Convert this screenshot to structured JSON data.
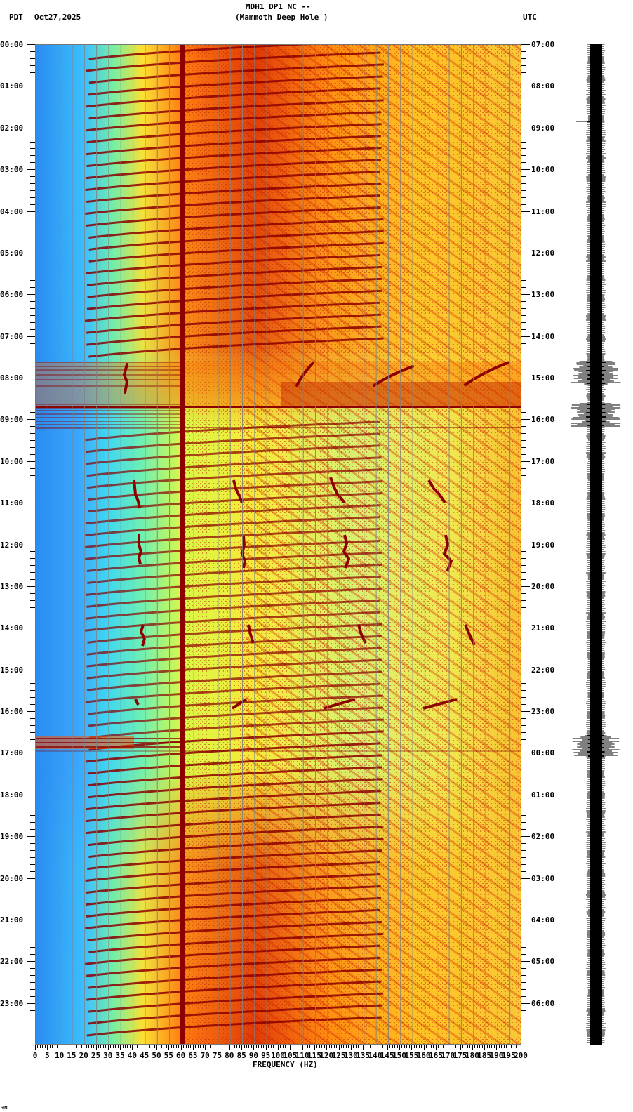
{
  "header": {
    "station": "MDH1 DP1 NC --",
    "location": "(Mammoth Deep Hole )",
    "left_timezone": "PDT",
    "date": "Oct27,2025",
    "right_timezone": "UTC"
  },
  "footer": {
    "corner_mark": "√M"
  },
  "chart_data": {
    "type": "heatmap",
    "title": "MDH1 DP1 NC -- (Mammoth Deep Hole )",
    "subtitle": "Oct27,2025",
    "xlabel": "FREQUENCY (HZ)",
    "ylabel_left": "PDT",
    "ylabel_right": "UTC",
    "xlim": [
      0,
      200
    ],
    "x_ticks": [
      "0",
      "5",
      "10",
      "15",
      "20",
      "25",
      "30",
      "35",
      "40",
      "45",
      "50",
      "55",
      "60",
      "65",
      "70",
      "75",
      "80",
      "85",
      "90",
      "95",
      "100",
      "105",
      "110",
      "115",
      "120",
      "125",
      "130",
      "135",
      "140",
      "145",
      "150",
      "155",
      "160",
      "165",
      "170",
      "175",
      "180",
      "185",
      "190",
      "195",
      "200"
    ],
    "y_ticks_left": [
      "00:00",
      "01:00",
      "02:00",
      "03:00",
      "04:00",
      "05:00",
      "06:00",
      "07:00",
      "08:00",
      "09:00",
      "10:00",
      "11:00",
      "12:00",
      "13:00",
      "14:00",
      "15:00",
      "16:00",
      "17:00",
      "18:00",
      "19:00",
      "20:00",
      "21:00",
      "22:00",
      "23:00"
    ],
    "y_ticks_right": [
      "07:00",
      "08:00",
      "09:00",
      "10:00",
      "11:00",
      "12:00",
      "13:00",
      "14:00",
      "15:00",
      "16:00",
      "17:00",
      "18:00",
      "19:00",
      "20:00",
      "21:00",
      "22:00",
      "23:00",
      "00:00",
      "01:00",
      "02:00",
      "03:00",
      "04:00",
      "05:00",
      "06:00"
    ],
    "grid": true,
    "colormap": [
      "#1e64ff",
      "#3cc8ff",
      "#78f0a0",
      "#ffff3c",
      "#ffb400",
      "#ff3c00",
      "#8c0000"
    ],
    "features": {
      "persistent_line_hz": 60,
      "event_bands_pdt": [
        "07:37-08:40",
        "16:45-16:55"
      ],
      "waveform_bursts_pdt": [
        "07:38-08:05",
        "08:35-09:10",
        "16:50-17:00"
      ]
    }
  }
}
